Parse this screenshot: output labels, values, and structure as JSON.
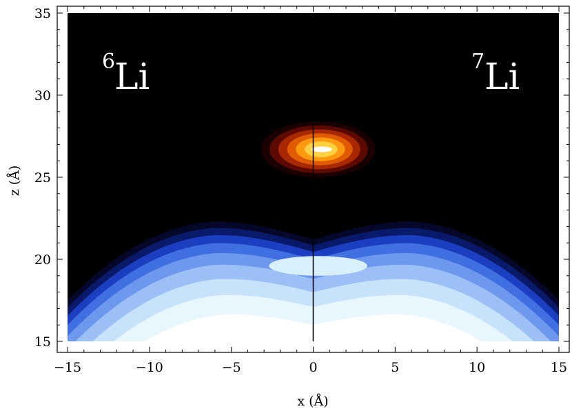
{
  "chart_data": {
    "type": "heatmap",
    "title": "",
    "xlabel": "x (Å)",
    "ylabel": "z (Å)",
    "xlim": [
      -15,
      15
    ],
    "ylim": [
      15,
      35
    ],
    "x_ticks": [
      -15,
      -10,
      -5,
      0,
      5,
      10,
      15
    ],
    "x_tick_labels": [
      "−15",
      "−10",
      "−5",
      "0",
      "5",
      "10",
      "15"
    ],
    "y_ticks": [
      15,
      20,
      25,
      30,
      35
    ],
    "y_tick_labels": [
      "15",
      "20",
      "25",
      "30",
      "35"
    ],
    "grid": false,
    "divider_x": 0,
    "background": "#000000",
    "panels": [
      {
        "side": "left",
        "isotope_mass": "6",
        "element": "Li"
      },
      {
        "side": "right",
        "isotope_mass": "7",
        "element": "Li"
      }
    ],
    "series": [
      {
        "kind": "atom-density",
        "colormap": [
          "#1a0000",
          "#5c0a00",
          "#a82800",
          "#e05a00",
          "#ff9a10",
          "#ffd040",
          "#ffffff"
        ],
        "peak": {
          "x": 0.3,
          "z": 26.7
        },
        "half_width_x": 3.5,
        "half_height_z": 1.7,
        "levels": 7
      },
      {
        "kind": "helium-surface-density",
        "colormap": [
          "#05082a",
          "#0a1a6a",
          "#1b3fc0",
          "#3f6fe0",
          "#6d98ee",
          "#9cc0f6",
          "#c6e3fb",
          "#e8f7fe",
          "#ffffff"
        ],
        "surface_edge_z_at_x0": 21.2,
        "surface_edge_z_at_x_abs6": 22.3,
        "surface_edge_z_at_x_abs15": 17.5,
        "inner_pocket_center_z": 19.6,
        "levels": 9
      }
    ]
  }
}
